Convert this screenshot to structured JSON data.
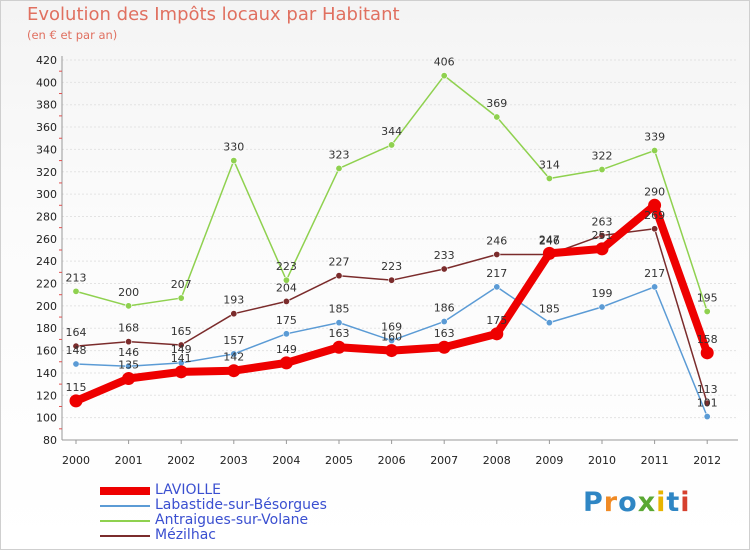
{
  "title": "Evolution des Impôts locaux par Habitant",
  "subtitle": "(en € et par an)",
  "logo": {
    "text": "Proxiti",
    "colors": [
      "#2f86c4",
      "#f08a24",
      "#2f86c4",
      "#5aa832",
      "#e8b400",
      "#2f86c4",
      "#d6402e"
    ]
  },
  "chart_data": {
    "type": "line",
    "title": "Evolution des Impôts locaux par Habitant",
    "subtitle": "(en € et par an)",
    "xlabel": "",
    "ylabel": "",
    "x": [
      "2000",
      "2001",
      "2002",
      "2003",
      "2004",
      "2005",
      "2006",
      "2007",
      "2008",
      "2009",
      "2010",
      "2011",
      "2012"
    ],
    "ylim": [
      80,
      420
    ],
    "yticks": [
      80,
      100,
      120,
      140,
      160,
      180,
      200,
      220,
      240,
      260,
      280,
      300,
      320,
      340,
      360,
      380,
      400,
      420
    ],
    "grid": "horizontal",
    "legend_position": "bottom-left",
    "series": [
      {
        "name": "LAVIOLLE",
        "color": "#ee0000",
        "width": 8,
        "values": [
          115,
          135,
          141,
          142,
          149,
          163,
          160,
          163,
          175,
          247,
          251,
          290,
          158
        ],
        "labels": [
          "115",
          "135",
          "141",
          "142",
          "149",
          "163",
          "160",
          "163",
          "175",
          "247",
          "251",
          "290",
          "158"
        ]
      },
      {
        "name": "Labastide-sur-Bésorgues",
        "color": "#5b9bd5",
        "width": 1.5,
        "values": [
          148,
          146,
          149,
          157,
          175,
          185,
          169,
          186,
          217,
          185,
          199,
          217,
          101
        ],
        "labels": [
          "148",
          "146",
          "149",
          "157",
          "175",
          "185",
          "169",
          "186",
          "217",
          "185",
          "199",
          "217",
          "101"
        ]
      },
      {
        "name": "Antraigues-sur-Volane",
        "color": "#8fd14f",
        "width": 1.5,
        "values": [
          213,
          200,
          207,
          330,
          223,
          323,
          344,
          406,
          369,
          314,
          322,
          339,
          195
        ],
        "labels": [
          "213",
          "200",
          "207",
          "330",
          "223",
          "323",
          "344",
          "406",
          "369",
          "314",
          "322",
          "339",
          "195"
        ]
      },
      {
        "name": "Mézilhac",
        "color": "#7b2c2c",
        "width": 1.5,
        "values": [
          164,
          168,
          165,
          193,
          204,
          227,
          223,
          233,
          246,
          246,
          263,
          269,
          113
        ],
        "labels": [
          "164",
          "168",
          "165",
          "193",
          "204",
          "227",
          "223",
          "233",
          "246",
          "246",
          "263",
          "269",
          "113"
        ]
      }
    ]
  }
}
